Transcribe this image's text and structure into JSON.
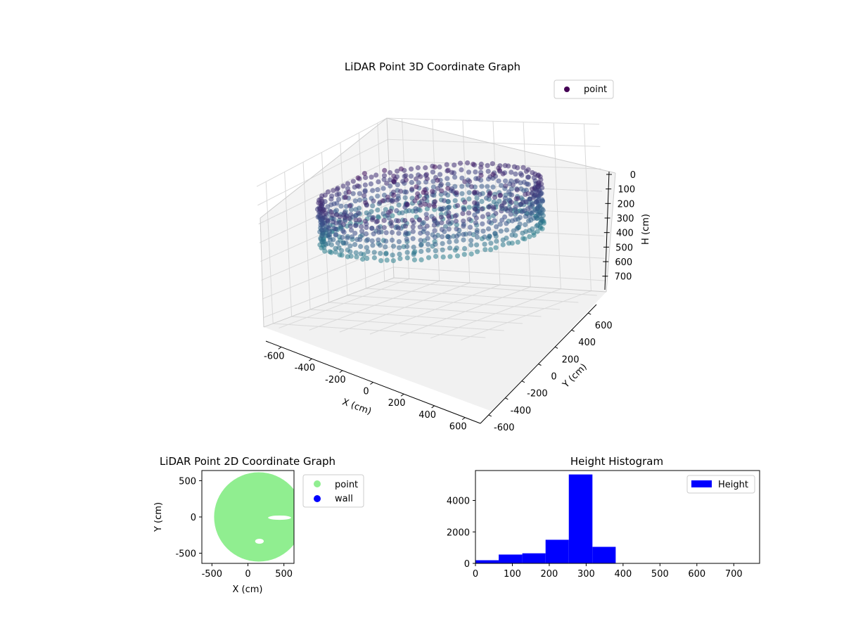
{
  "chart_data": [
    {
      "type": "scatter",
      "projection": "3d",
      "title": "LiDAR Point 3D Coordinate Graph",
      "xlabel": "X (cm)",
      "ylabel": "Y (cm)",
      "zlabel": "H (cm)",
      "xlim": [
        -700,
        700
      ],
      "ylim": [
        -700,
        700
      ],
      "zlim": [
        750,
        0
      ],
      "xticks": [
        "-600",
        "-400",
        "-200",
        "0",
        "200",
        "400",
        "600"
      ],
      "yticks": [
        "-600",
        "-400",
        "-200",
        "0",
        "200",
        "400",
        "600"
      ],
      "zticks": [
        "0",
        "100",
        "200",
        "300",
        "400",
        "500",
        "600",
        "700"
      ],
      "z_axis_inverted": true,
      "colormap": "viridis",
      "grid": true,
      "legend_position": "top-right",
      "series": [
        {
          "name": "point",
          "color": "#440154",
          "structure": "cylindrical wall of points around the origin plus an interior cluster",
          "wall_radius": 620,
          "wall_height_range": [
            180,
            380
          ],
          "interior_cluster_center": [
            0,
            0
          ],
          "interior_height_range": [
            120,
            380
          ]
        }
      ]
    },
    {
      "type": "scatter",
      "title": "LiDAR Point 2D Coordinate Graph",
      "xlabel": "X (cm)",
      "ylabel": "Y (cm)",
      "xlim": [
        -640,
        640
      ],
      "ylim": [
        -640,
        640
      ],
      "xticks": [
        "-500",
        "0",
        "500"
      ],
      "yticks": [
        "500",
        "0",
        "-500"
      ],
      "legend_position": "outside-right",
      "series": [
        {
          "name": "point",
          "color": "#90ee90",
          "shape": "dense disc",
          "center": [
            150,
            0
          ],
          "radius": 620,
          "gaps": [
            {
              "x_range": [
                280,
                600
              ],
              "y_range": [
                -40,
                20
              ]
            },
            {
              "x_range": [
                100,
                220
              ],
              "y_range": [
                -370,
                -300
              ]
            }
          ]
        },
        {
          "name": "wall",
          "color": "#0000ff",
          "values": []
        }
      ]
    },
    {
      "type": "bar",
      "subtype": "histogram",
      "title": "Height Histogram",
      "xlabel": "",
      "ylabel": "",
      "xlim": [
        0,
        770
      ],
      "ylim": [
        0,
        5900
      ],
      "xticks": [
        "0",
        "100",
        "200",
        "300",
        "400",
        "500",
        "600",
        "700"
      ],
      "yticks": [
        "0",
        "2000",
        "4000"
      ],
      "bin_edges": [
        0,
        63,
        127,
        190,
        253,
        317,
        380,
        443,
        507,
        570,
        633,
        697,
        760
      ],
      "series": [
        {
          "name": "Height",
          "color": "#0000ff",
          "values": [
            200,
            560,
            640,
            1500,
            5650,
            1050,
            0,
            0,
            0,
            0,
            0,
            0
          ]
        }
      ],
      "legend_position": "top-right"
    }
  ]
}
